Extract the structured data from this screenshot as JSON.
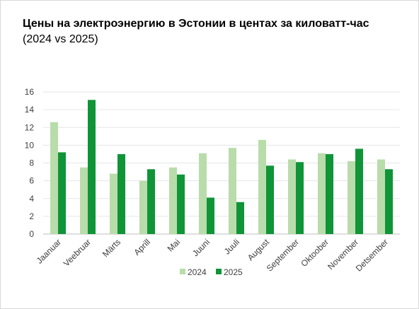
{
  "title": "Цены на электроэнергию в Эстонии в центах за киловатт-час",
  "subtitle": "(2024 vs 2025)",
  "chart_data": {
    "type": "bar",
    "categories": [
      "Jaanuar",
      "Veebruar",
      "Märts",
      "Aprill",
      "Mai",
      "Juuni",
      "Juuli",
      "August",
      "September",
      "Oktoober",
      "November",
      "Detsember"
    ],
    "series": [
      {
        "name": "2024",
        "color": "#b9dcab",
        "values": [
          12.6,
          7.5,
          6.8,
          6.0,
          7.5,
          9.1,
          9.7,
          10.6,
          8.4,
          9.1,
          8.2,
          8.4
        ]
      },
      {
        "name": "2025",
        "color": "#109438",
        "values": [
          9.2,
          15.1,
          9.0,
          7.3,
          6.7,
          4.1,
          3.6,
          7.7,
          8.1,
          9.0,
          9.6,
          7.3
        ]
      }
    ],
    "ylim": [
      0,
      16
    ],
    "yticks": [
      0,
      2,
      4,
      6,
      8,
      10,
      12,
      14,
      16
    ],
    "grid": true,
    "legend": "bottom-center"
  }
}
